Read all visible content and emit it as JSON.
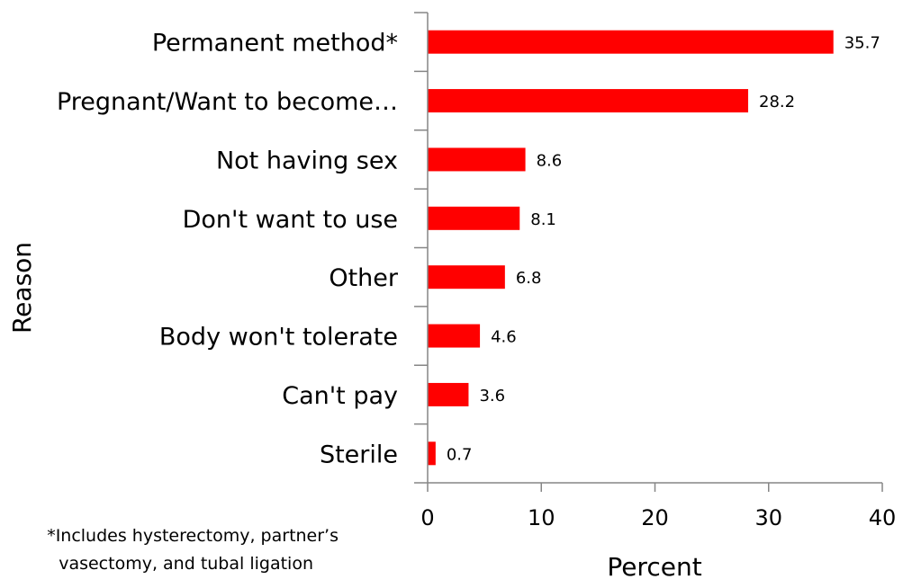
{
  "chart_data": {
    "type": "bar",
    "orientation": "horizontal",
    "categories": [
      "Permanent method*",
      "Pregnant/Want to become…",
      "Not having sex",
      "Don't want to use",
      "Other",
      "Body won't tolerate",
      "Can't pay",
      "Sterile"
    ],
    "values": [
      35.7,
      28.2,
      8.6,
      8.1,
      6.8,
      4.6,
      3.6,
      0.7
    ],
    "value_labels": [
      "35.7",
      "28.2",
      "8.6",
      "8.1",
      "6.8",
      "4.6",
      "3.6",
      "0.7"
    ],
    "xlabel": "Percent",
    "ylabel": "Reason",
    "xlim": [
      0,
      40
    ],
    "x_ticks": [
      "0",
      "10",
      "20",
      "30",
      "40"
    ],
    "grid": false,
    "bar_color": "#ff0000",
    "footnote_lines": [
      "*Includes hysterectomy, partner’s",
      "vasectomy, and tubal ligation"
    ]
  }
}
